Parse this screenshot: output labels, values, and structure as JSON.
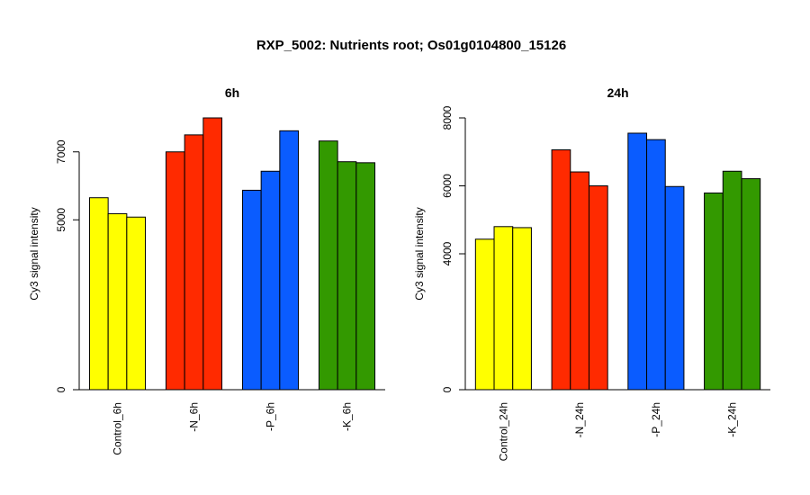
{
  "figure": {
    "title": "RXP_5002: Nutrients root; Os01g0104800_15126"
  },
  "chart_data": [
    {
      "type": "bar",
      "title": "6h",
      "ylabel": "Cy3 signal intensity",
      "xlabel": "",
      "ylim": [
        0,
        8000
      ],
      "y_ticks": [
        0,
        5000,
        7000
      ],
      "y_tick_labels": [
        "0",
        "5000",
        "7000"
      ],
      "grid": false,
      "legend": "none",
      "groups": [
        {
          "label": "Control_6h",
          "color": "#ffff00",
          "values": [
            5650,
            5180,
            5080
          ]
        },
        {
          "label": "-N_6h",
          "color": "#ff2a00",
          "values": [
            7000,
            7500,
            8000
          ]
        },
        {
          "label": "-P_6h",
          "color": "#0a5cff",
          "values": [
            5870,
            6430,
            7620
          ]
        },
        {
          "label": "-K_6h",
          "color": "#339900",
          "values": [
            7320,
            6710,
            6680
          ]
        }
      ]
    },
    {
      "type": "bar",
      "title": "24h",
      "ylabel": "Cy3 signal intensity",
      "xlabel": "",
      "ylim": [
        0,
        8000
      ],
      "y_ticks": [
        0,
        4000,
        6000,
        8000
      ],
      "y_tick_labels": [
        "0",
        "4000",
        "6000",
        "8000"
      ],
      "grid": false,
      "legend": "none",
      "groups": [
        {
          "label": "Control_24h",
          "color": "#ffff00",
          "values": [
            4430,
            4800,
            4770
          ]
        },
        {
          "label": "-N_24h",
          "color": "#ff2a00",
          "values": [
            7060,
            6410,
            6000
          ]
        },
        {
          "label": "-P_24h",
          "color": "#0a5cff",
          "values": [
            7550,
            7360,
            5980
          ]
        },
        {
          "label": "-K_24h",
          "color": "#339900",
          "values": [
            5790,
            6430,
            6210
          ]
        }
      ]
    }
  ]
}
